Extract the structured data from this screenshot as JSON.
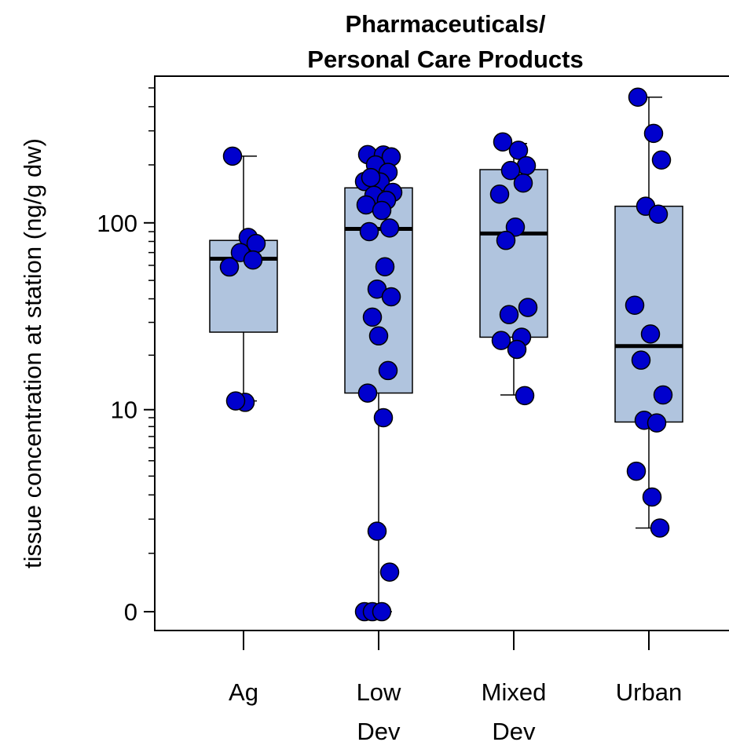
{
  "chart_data": {
    "type": "box",
    "title": "Pharmaceuticals/\nPersonal Care Products",
    "y_label": "tissue concentration at station (ng/g dw)",
    "yscale": "log1p",
    "ylim": [
      -0.2,
      575
    ],
    "yticks": [
      0,
      10,
      100
    ],
    "yminorticks": [
      1,
      2,
      3,
      4,
      5,
      6,
      7,
      8,
      9,
      20,
      30,
      40,
      50,
      60,
      70,
      80,
      90,
      200,
      300,
      400,
      500
    ],
    "box_color": "#b0c4de",
    "point_color": "#0000cd",
    "categories": [
      "Ag",
      "Low\nDev",
      "Mixed\nDev",
      "Urban"
    ],
    "boxes": [
      {
        "whislo": 11.2,
        "q1": 26.6,
        "median": 65,
        "q3": 81,
        "whishi": 222,
        "points": [
          222,
          84,
          78,
          70,
          64,
          58.8,
          11,
          11.2
        ]
      },
      {
        "whislo": 0,
        "q1": 12.4,
        "median": 93,
        "q3": 152,
        "whishi": 226,
        "points": [
          226,
          225,
          220,
          200,
          183,
          164,
          163,
          172,
          144,
          139,
          131,
          124,
          116,
          94,
          90,
          59,
          45,
          41,
          32,
          25.4,
          16.5,
          12.4,
          9,
          1.6,
          0.6,
          0,
          0,
          0
        ]
      },
      {
        "whislo": 12.1,
        "q1": 25,
        "median": 88,
        "q3": 189,
        "whishi": 258,
        "points": [
          263,
          238,
          198,
          187,
          161,
          141,
          95,
          81,
          36,
          33,
          25,
          24,
          21.5,
          12
        ]
      },
      {
        "whislo": 1.7,
        "q1": 8.5,
        "median": 22.4,
        "q3": 122,
        "whishi": 448,
        "points": [
          448,
          291,
          212,
          122,
          111,
          37,
          26,
          18.8,
          12.1,
          8.7,
          8.4,
          4.3,
          2.9,
          1.7
        ]
      }
    ]
  }
}
